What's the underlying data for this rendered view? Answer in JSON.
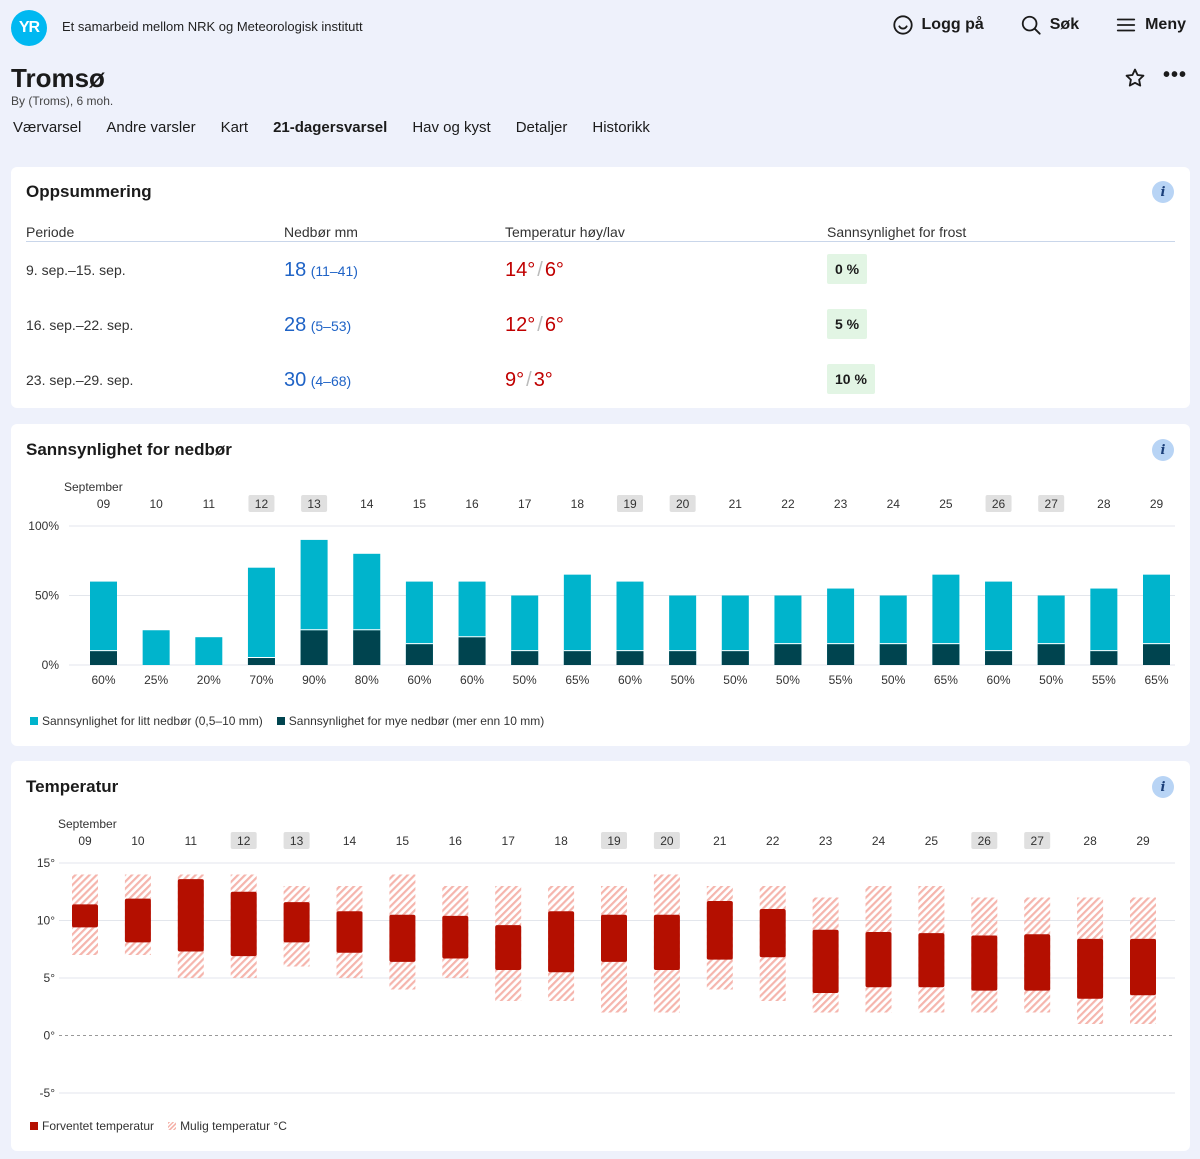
{
  "header": {
    "logo": "YR",
    "tagline": "Et samarbeid mellom NRK og Meteorologisk institutt",
    "login_label": "Logg på",
    "search_label": "Søk",
    "menu_label": "Meny"
  },
  "location": {
    "name": "Tromsø",
    "subtitle": "By (Troms), 6 moh."
  },
  "nav": {
    "items": [
      "Værvarsel",
      "Andre varsler",
      "Kart",
      "21-dagersvarsel",
      "Hav og kyst",
      "Detaljer",
      "Historikk"
    ],
    "active": "21-dagersvarsel"
  },
  "summary": {
    "title": "Oppsummering",
    "headers": {
      "period": "Periode",
      "precip": "Nedbør mm",
      "temp": "Temperatur høy/lav",
      "frost": "Sannsynlighet for frost"
    },
    "rows": [
      {
        "period": "9. sep.–15. sep.",
        "precip": "18",
        "precip_range": "(11–41)",
        "high": "14°",
        "low": "6°",
        "frost": "0 %"
      },
      {
        "period": "16. sep.–22. sep.",
        "precip": "28",
        "precip_range": "(5–53)",
        "high": "12°",
        "low": "6°",
        "frost": "5 %"
      },
      {
        "period": "23. sep.–29. sep.",
        "precip": "30",
        "precip_range": "(4–68)",
        "high": "9°",
        "low": "3°",
        "frost": "10 %"
      }
    ]
  },
  "precip_chart": {
    "title": "Sannsynlighet for nedbør",
    "legend_light": "Sannsynlighet for litt nedbør (0,5–10 mm)",
    "legend_heavy": "Sannsynlighet for mye nedbør (mer enn 10 mm)",
    "colors": {
      "light": "#00b4cc",
      "heavy": "#00444f",
      "weekend_bg": "#e0e0e0"
    }
  },
  "temp_chart": {
    "title": "Temperatur",
    "legend_expected": "Forventet temperatur",
    "legend_possible": "Mulig temperatur °C",
    "colors": {
      "expected": "#b40f00",
      "possible": "#f5b5ad"
    }
  },
  "chart_data": [
    {
      "type": "bar",
      "title": "Sannsynlighet for nedbør",
      "month_label": "September",
      "categories": [
        "09",
        "10",
        "11",
        "12",
        "13",
        "14",
        "15",
        "16",
        "17",
        "18",
        "19",
        "20",
        "21",
        "22",
        "23",
        "24",
        "25",
        "26",
        "27",
        "28",
        "29"
      ],
      "weekend": [
        "12",
        "13",
        "19",
        "20",
        "26",
        "27"
      ],
      "y_ticks": [
        "100%",
        "50%",
        "0%"
      ],
      "ylim": [
        0,
        100
      ],
      "total_labels": [
        "60%",
        "25%",
        "20%",
        "70%",
        "90%",
        "80%",
        "60%",
        "60%",
        "50%",
        "65%",
        "60%",
        "50%",
        "50%",
        "50%",
        "55%",
        "50%",
        "65%",
        "60%",
        "50%",
        "55%",
        "65%"
      ],
      "series": [
        {
          "name": "Sannsynlighet for litt nedbør (0,5–10 mm)",
          "values": [
            60,
            25,
            20,
            70,
            90,
            80,
            60,
            60,
            50,
            65,
            60,
            50,
            50,
            50,
            55,
            50,
            65,
            60,
            50,
            55,
            65
          ]
        },
        {
          "name": "Sannsynlighet for mye nedbør (mer enn 10 mm)",
          "values": [
            10,
            0,
            0,
            5,
            25,
            25,
            15,
            20,
            10,
            10,
            10,
            10,
            10,
            15,
            15,
            15,
            15,
            10,
            15,
            10,
            15
          ]
        }
      ]
    },
    {
      "type": "bar",
      "title": "Temperatur",
      "month_label": "September",
      "categories": [
        "09",
        "10",
        "11",
        "12",
        "13",
        "14",
        "15",
        "16",
        "17",
        "18",
        "19",
        "20",
        "21",
        "22",
        "23",
        "24",
        "25",
        "26",
        "27",
        "28",
        "29"
      ],
      "weekend": [
        "12",
        "13",
        "19",
        "20",
        "26",
        "27"
      ],
      "y_ticks": [
        "15°",
        "10°",
        "5°",
        "0°",
        "-5°"
      ],
      "ylim": [
        -5,
        15
      ],
      "series": [
        {
          "name": "Forventet temperatur",
          "low": [
            9.4,
            8.1,
            7.3,
            6.9,
            8.1,
            7.2,
            6.4,
            6.7,
            5.7,
            5.5,
            6.4,
            5.7,
            6.6,
            6.8,
            3.7,
            4.2,
            4.2,
            3.9,
            3.9,
            3.2,
            3.5
          ],
          "high": [
            11.4,
            11.9,
            13.6,
            12.5,
            11.6,
            10.8,
            10.5,
            10.4,
            9.6,
            10.8,
            10.5,
            10.5,
            11.7,
            11.0,
            9.2,
            9.0,
            8.9,
            8.7,
            8.8,
            8.4,
            8.4
          ]
        },
        {
          "name": "Mulig temperatur °C",
          "low": [
            7.0,
            7.0,
            5.0,
            5.0,
            6.0,
            5.0,
            4.0,
            5.0,
            3.0,
            3.0,
            2.0,
            2.0,
            4.0,
            3.0,
            2.0,
            2.0,
            2.0,
            2.0,
            2.0,
            1.0,
            1.0
          ],
          "high": [
            14.0,
            14.0,
            14.0,
            14.0,
            13.0,
            13.0,
            14.0,
            13.0,
            13.0,
            13.0,
            13.0,
            14.0,
            13.0,
            13.0,
            12.0,
            13.0,
            13.0,
            12.0,
            12.0,
            12.0,
            12.0
          ]
        }
      ]
    }
  ]
}
